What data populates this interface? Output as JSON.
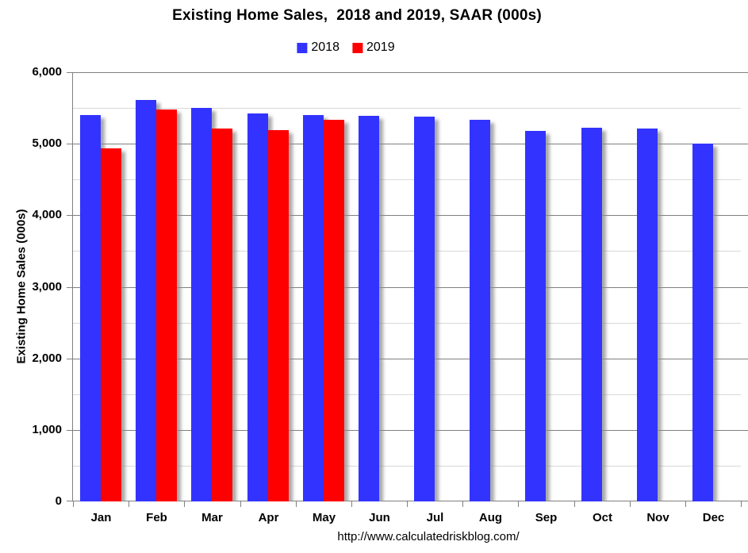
{
  "footer": {
    "url": "http://www.calculatedriskblog.com/"
  },
  "chart_data": {
    "type": "bar",
    "title": "Existing Home Sales,  2018 and 2019, SAAR (000s)",
    "ylabel": "Existing Home Sales (000s)",
    "xlabel": "",
    "ylim": [
      0,
      6000
    ],
    "y_major_step": 1000,
    "y_minor_step": 500,
    "y_tick_labels": [
      "0",
      "1,000",
      "2,000",
      "3,000",
      "4,000",
      "5,000",
      "6,000"
    ],
    "grid": "horizontal major (gray) and minor (light gray) gridlines",
    "legend_position": "top center",
    "categories": [
      "Jan",
      "Feb",
      "Mar",
      "Apr",
      "May",
      "Jun",
      "Jul",
      "Aug",
      "Sep",
      "Oct",
      "Nov",
      "Dec"
    ],
    "series": [
      {
        "name": "2018",
        "color": "#3333ff",
        "values": [
          5400,
          5610,
          5500,
          5420,
          5400,
          5390,
          5380,
          5340,
          5180,
          5220,
          5210,
          5000
        ]
      },
      {
        "name": "2019",
        "color": "#ff0000",
        "values": [
          4930,
          5480,
          5210,
          5190,
          5340,
          null,
          null,
          null,
          null,
          null,
          null,
          null
        ]
      }
    ]
  }
}
